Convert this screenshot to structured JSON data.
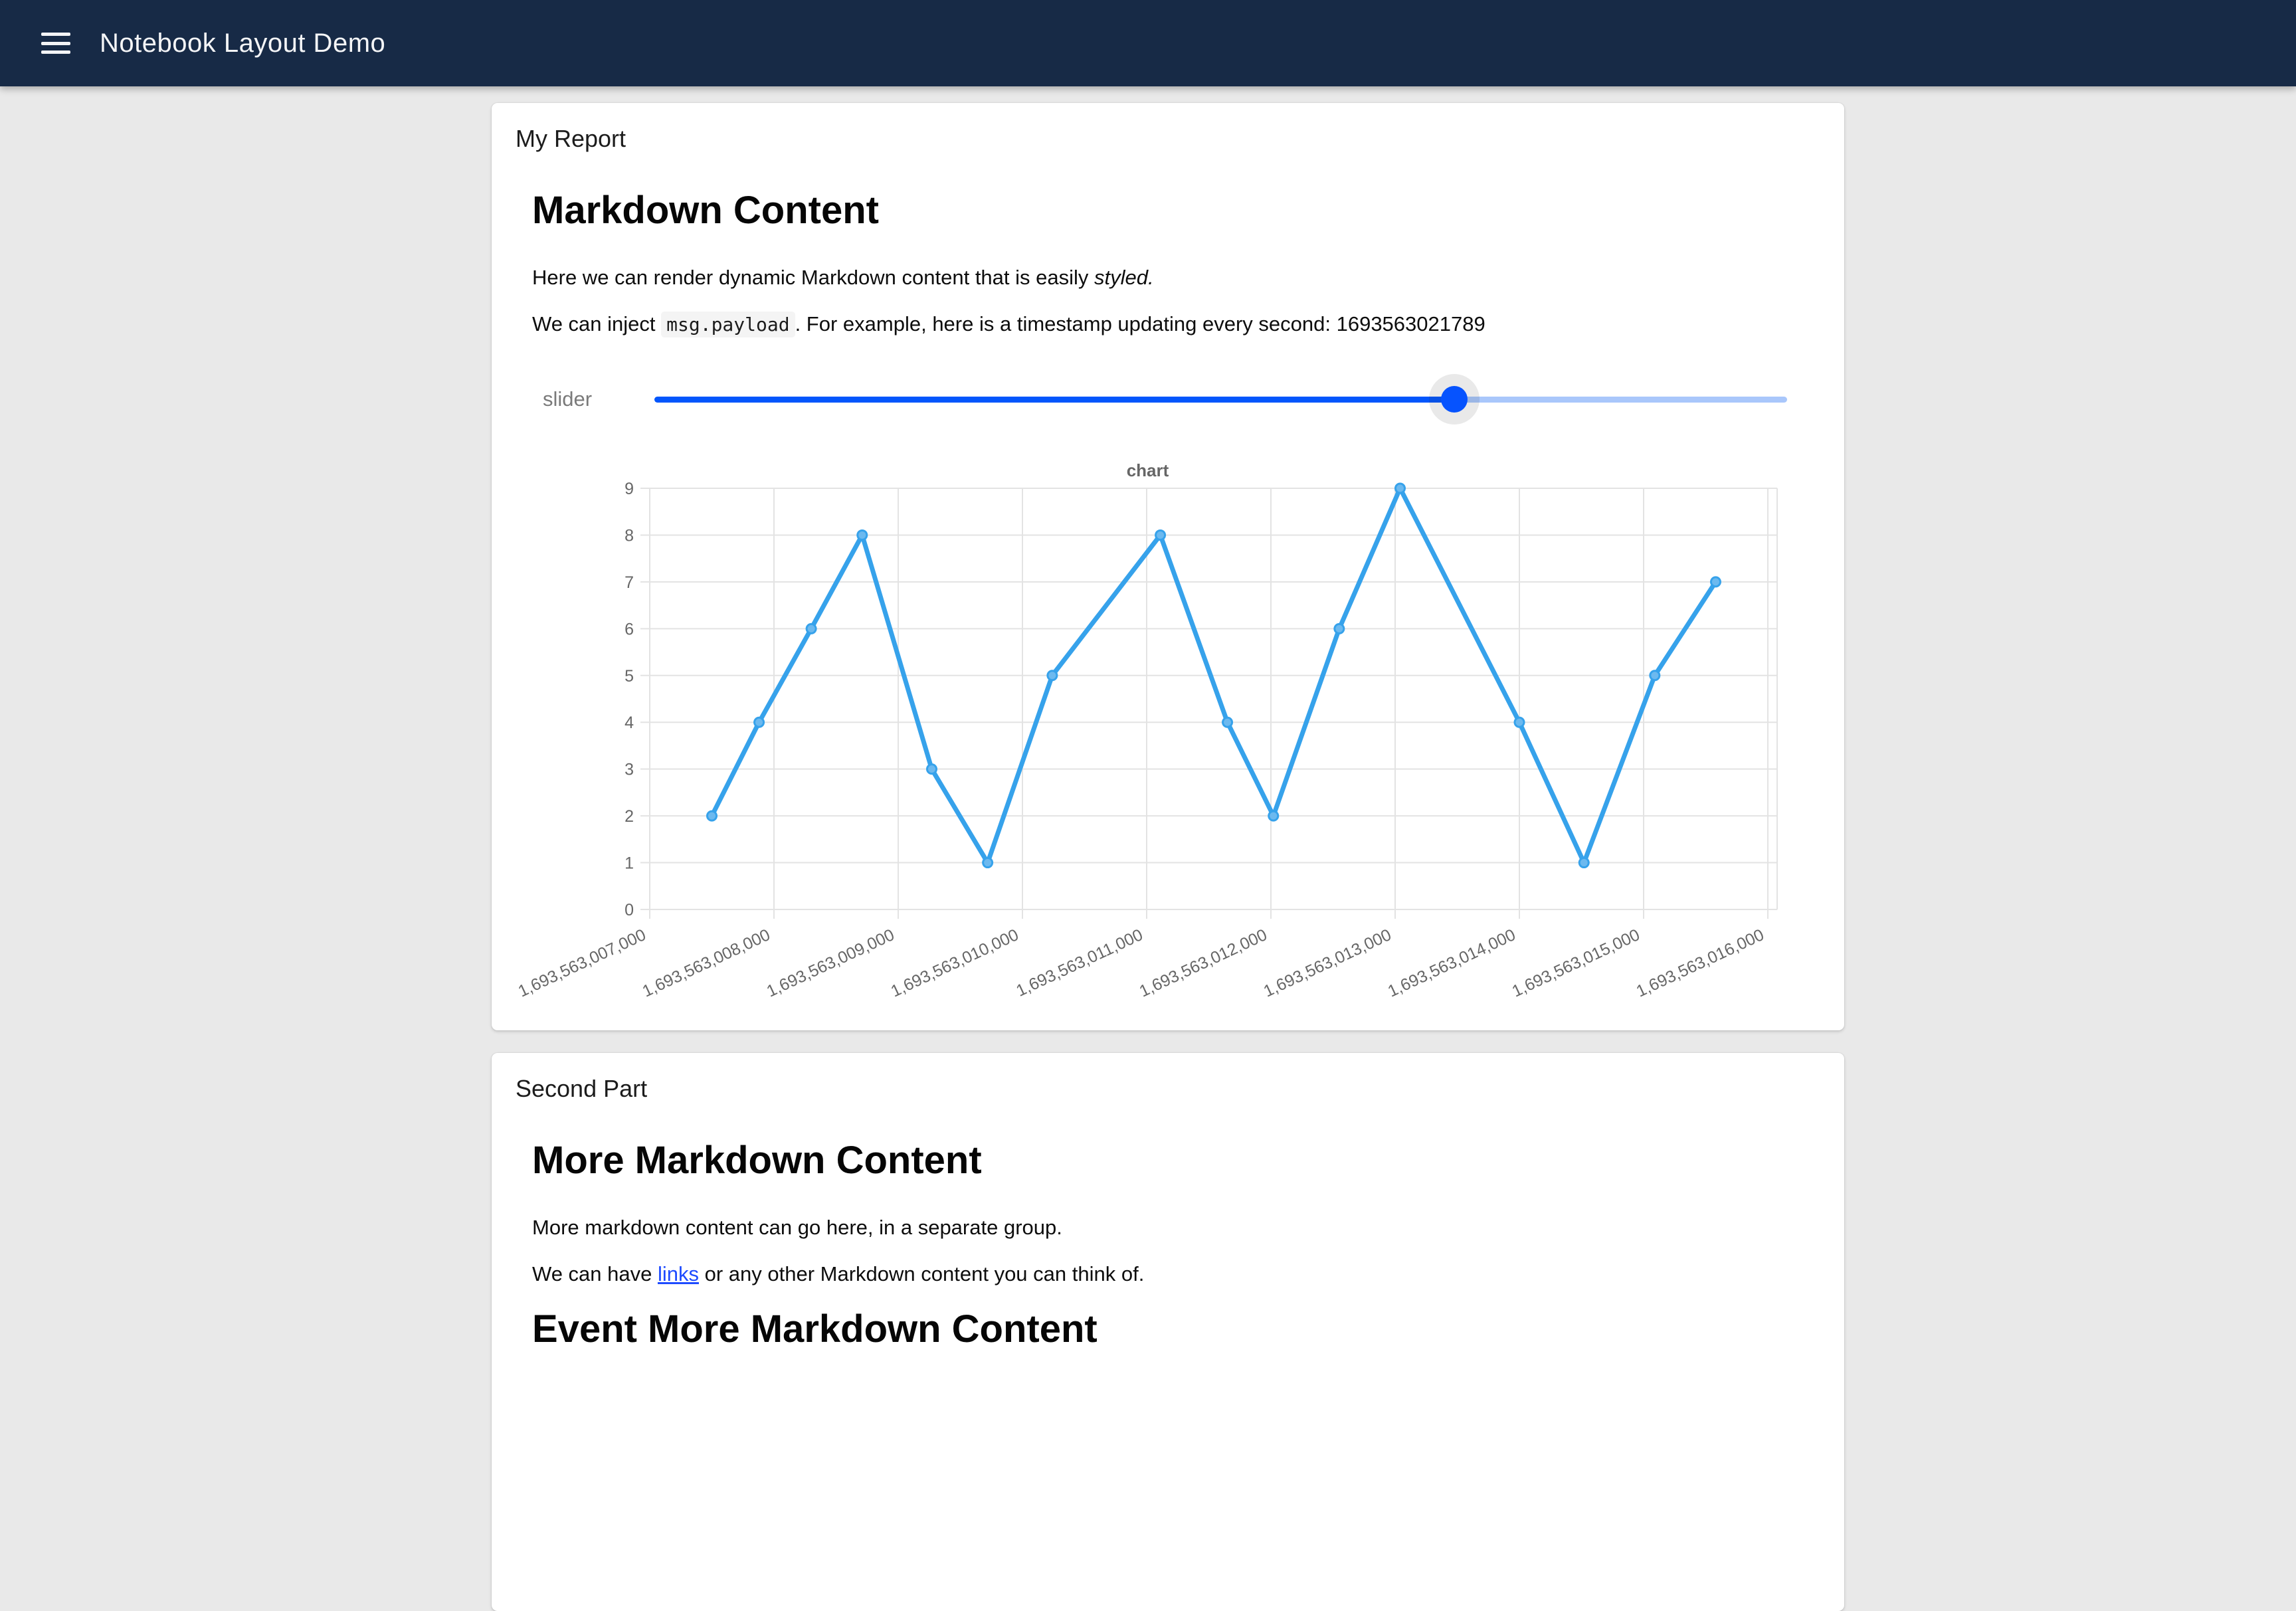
{
  "header": {
    "title": "Notebook Layout Demo",
    "menu_icon": "hamburger-icon",
    "bg_color": "#172a46"
  },
  "report_card": {
    "title": "My Report",
    "heading": "Markdown Content",
    "paragraph1_prefix": "Here we can render dynamic Markdown content that is easily ",
    "paragraph1_italic": "styled.",
    "paragraph2_prefix": "We can inject ",
    "paragraph2_code": "msg.payload",
    "paragraph2_suffix": ". For example, here is a timestamp updating every second: ",
    "paragraph2_timestamp": "1693563021789",
    "slider": {
      "label": "slider",
      "value_percent": 70.6,
      "active_color": "#0356fc",
      "inactive_color": "#a9c7fb",
      "thumb_color": "#0653fe"
    }
  },
  "chart_data": {
    "type": "line",
    "title": "chart",
    "line_color": "#36A2EB",
    "grid": true,
    "legend_position": "none",
    "ylim": [
      0,
      9
    ],
    "y_ticks": [
      0,
      1,
      2,
      3,
      4,
      5,
      6,
      7,
      8,
      9
    ],
    "x_tick_values": [
      1693563007000,
      1693563008000,
      1693563009000,
      1693563010000,
      1693563011000,
      1693563012000,
      1693563013000,
      1693563014000,
      1693563015000,
      1693563016000
    ],
    "x_tick_labels": [
      "1,693,563,007,000",
      "1,693,563,008,000",
      "1,693,563,009,000",
      "1,693,563,010,000",
      "1,693,563,011,000",
      "1,693,563,012,000",
      "1,693,563,013,000",
      "1,693,563,014,000",
      "1,693,563,015,000",
      "1,693,563,016,000"
    ],
    "x": [
      1693563007500,
      1693563007880,
      1693563008300,
      1693563008710,
      1693563009270,
      1693563009720,
      1693563010240,
      1693563011110,
      1693563011650,
      1693563012020,
      1693563012550,
      1693563013040,
      1693563014000,
      1693563014520,
      1693563015090,
      1693563015580
    ],
    "values": [
      2,
      4,
      6,
      8,
      3,
      1,
      5,
      8,
      4,
      2,
      6,
      9,
      4,
      1,
      5,
      7
    ]
  },
  "second_card": {
    "title": "Second Part",
    "heading": "More Markdown Content",
    "paragraph1": "More markdown content can go here, in a separate group.",
    "paragraph2_prefix": "We can have ",
    "paragraph2_link": "links",
    "paragraph2_suffix": " or any other Markdown content you can think of.",
    "heading2": "Event More Markdown Content"
  }
}
